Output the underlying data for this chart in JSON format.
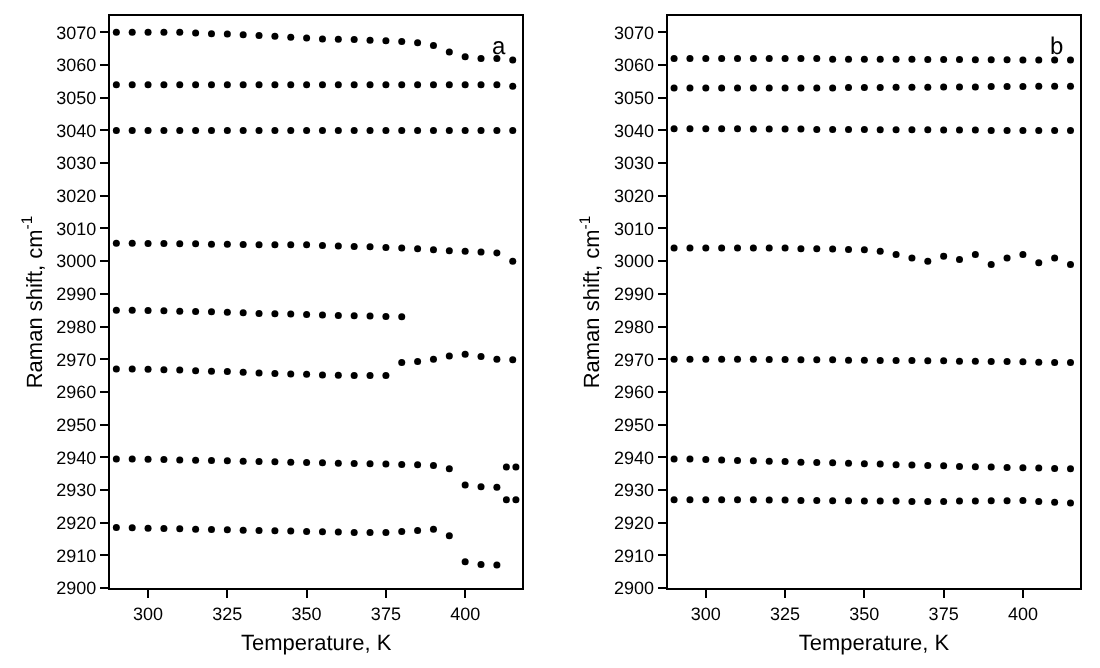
{
  "chart_data": [
    {
      "type": "scatter",
      "xlabel": "Temperature, K",
      "ylabel": "Raman shift, cm$^{-1}$",
      "annotations": [
        "a"
      ],
      "marker": "circle",
      "xlim": [
        288,
        418
      ],
      "xticks": [
        300,
        325,
        350,
        375,
        400
      ],
      "ylim": [
        2900,
        3075
      ],
      "yticks": [
        2900,
        2910,
        2920,
        2930,
        2940,
        2950,
        2960,
        2970,
        2980,
        2990,
        3000,
        3010,
        3020,
        3030,
        3040,
        3050,
        3060,
        3070
      ],
      "x": [
        290,
        295,
        300,
        305,
        310,
        315,
        320,
        325,
        330,
        335,
        340,
        345,
        350,
        355,
        360,
        365,
        370,
        375,
        380,
        385,
        390,
        395,
        400,
        405,
        410,
        415
      ],
      "series": [
        {
          "color": "#000000",
          "values": [
            3070,
            3070,
            3070,
            3070,
            3070,
            3069.8,
            3069.6,
            3069.5,
            3069.3,
            3069,
            3068.8,
            3068.5,
            3068.3,
            3068,
            3067.9,
            3067.8,
            3067.6,
            3067.4,
            3067.2,
            3066.8,
            3066,
            3064,
            3062.5,
            3062,
            3062,
            3061.5
          ]
        },
        {
          "color": "#000000",
          "values": [
            3054,
            3054,
            3054,
            3054,
            3054,
            3054,
            3054,
            3054,
            3054,
            3054,
            3054,
            3054,
            3054,
            3054,
            3054,
            3054,
            3054,
            3054,
            3054,
            3054,
            3054,
            3054,
            3054,
            3054,
            3054,
            3053.5
          ]
        },
        {
          "color": "#000000",
          "values": [
            3040,
            3040,
            3040,
            3040,
            3040,
            3040,
            3040,
            3040,
            3040,
            3040,
            3040,
            3040,
            3040,
            3040,
            3040,
            3040,
            3040,
            3040,
            3040,
            3040,
            3040,
            3040,
            3040,
            3040,
            3040,
            3040
          ]
        },
        {
          "color": "#000000",
          "values": [
            3005.5,
            3005.5,
            3005.4,
            3005.4,
            3005.3,
            3005.3,
            3005.2,
            3005.2,
            3005.1,
            3005,
            3005,
            3005,
            3005,
            3004.8,
            3004.6,
            3004.5,
            3004.4,
            3004.2,
            3004,
            3003.8,
            3003.5,
            3003.2,
            3003,
            3002.8,
            3002.5,
            3000
          ]
        },
        {
          "color": "#000000",
          "values": [
            2985,
            2985,
            2984.9,
            2984.8,
            2984.7,
            2984.6,
            2984.5,
            2984.4,
            2984.2,
            2984,
            2983.9,
            2983.8,
            2983.7,
            2983.5,
            2983.4,
            2983.3,
            2983.2,
            2983.1,
            2983,
            null,
            null,
            null,
            null,
            null,
            null,
            null
          ]
        },
        {
          "color": "#000000",
          "values": [
            2967,
            2967,
            2966.9,
            2966.8,
            2966.7,
            2966.5,
            2966.3,
            2966.2,
            2966,
            2965.8,
            2965.6,
            2965.5,
            2965.4,
            2965.2,
            2965.1,
            2965,
            2965,
            2965,
            2969,
            2969.3,
            2970,
            2971,
            2971.5,
            2970.8,
            2970,
            2969.8
          ]
        },
        {
          "color": "#000000",
          "x": [
            290,
            295,
            300,
            305,
            310,
            315,
            320,
            325,
            330,
            335,
            340,
            345,
            350,
            355,
            360,
            365,
            370,
            375,
            380,
            385,
            390,
            395,
            400,
            405,
            410,
            413,
            416,
            413,
            416
          ],
          "values": [
            2939.5,
            2939.5,
            2939.4,
            2939.3,
            2939.2,
            2939.1,
            2939,
            2938.9,
            2938.8,
            2938.7,
            2938.6,
            2938.5,
            2938.4,
            2938.3,
            2938.2,
            2938.1,
            2938,
            2937.9,
            2937.8,
            2937.7,
            2937.5,
            2936.5,
            2931.5,
            2931,
            2930.8,
            2937,
            2937,
            2927,
            2927
          ]
        },
        {
          "color": "#000000",
          "values": [
            2918.5,
            2918.4,
            2918.3,
            2918.2,
            2918.1,
            2918,
            2917.9,
            2917.8,
            2917.7,
            2917.6,
            2917.5,
            2917.4,
            2917.3,
            2917.2,
            2917.1,
            2917,
            2917,
            2917,
            2917.3,
            2917.6,
            2918,
            2916,
            2908,
            2907.2,
            2907,
            null
          ]
        }
      ]
    },
    {
      "type": "scatter",
      "xlabel": "Temperature, K",
      "ylabel": "Raman shift, cm$^{-1}$",
      "annotations": [
        "b"
      ],
      "marker": "circle",
      "xlim": [
        288,
        418
      ],
      "xticks": [
        300,
        325,
        350,
        375,
        400
      ],
      "ylim": [
        2900,
        3075
      ],
      "yticks": [
        2900,
        2910,
        2920,
        2930,
        2940,
        2950,
        2960,
        2970,
        2980,
        2990,
        3000,
        3010,
        3020,
        3030,
        3040,
        3050,
        3060,
        3070
      ],
      "x": [
        290,
        295,
        300,
        305,
        310,
        315,
        320,
        325,
        330,
        335,
        340,
        345,
        350,
        355,
        360,
        365,
        370,
        375,
        380,
        385,
        390,
        395,
        400,
        405,
        410,
        415
      ],
      "series": [
        {
          "color": "#000000",
          "values": [
            3062,
            3062,
            3062,
            3062,
            3062,
            3062,
            3062,
            3062,
            3062,
            3062,
            3061.8,
            3061.8,
            3061.8,
            3061.8,
            3061.8,
            3061.8,
            3061.7,
            3061.7,
            3061.7,
            3061.6,
            3061.6,
            3061.6,
            3061.5,
            3061.5,
            3061.5,
            3061.5
          ]
        },
        {
          "color": "#000000",
          "values": [
            3053,
            3053,
            3053,
            3053,
            3053,
            3053,
            3053,
            3053,
            3053,
            3053,
            3053,
            3053.1,
            3053.1,
            3053.1,
            3053.2,
            3053.2,
            3053.2,
            3053.3,
            3053.3,
            3053.3,
            3053.4,
            3053.4,
            3053.4,
            3053.5,
            3053.5,
            3053.5
          ]
        },
        {
          "color": "#000000",
          "values": [
            3040.5,
            3040.5,
            3040.5,
            3040.5,
            3040.5,
            3040.4,
            3040.4,
            3040.4,
            3040.4,
            3040.3,
            3040.3,
            3040.3,
            3040.3,
            3040.2,
            3040.2,
            3040.2,
            3040.2,
            3040.1,
            3040.1,
            3040.1,
            3040,
            3040,
            3040,
            3040,
            3040,
            3040
          ]
        },
        {
          "color": "#000000",
          "values": [
            3004,
            3004,
            3004,
            3004,
            3004,
            3004,
            3004,
            3004,
            3003.8,
            3003.8,
            3003.7,
            3003.6,
            3003.5,
            3003,
            3002,
            3001,
            3000,
            3001.5,
            3000.5,
            3002,
            2999,
            3001,
            3002,
            2999.5,
            3001,
            2999
          ]
        },
        {
          "color": "#000000",
          "values": [
            2970,
            2970,
            2970,
            2970,
            2970,
            2970,
            2969.9,
            2969.9,
            2969.8,
            2969.8,
            2969.8,
            2969.7,
            2969.7,
            2969.6,
            2969.6,
            2969.6,
            2969.5,
            2969.5,
            2969.4,
            2969.4,
            2969.3,
            2969.3,
            2969.2,
            2969.1,
            2969,
            2969
          ]
        },
        {
          "color": "#000000",
          "values": [
            2939.5,
            2939.5,
            2939.3,
            2939.2,
            2939,
            2938.9,
            2938.8,
            2938.7,
            2938.5,
            2938.4,
            2938.3,
            2938.2,
            2938,
            2937.9,
            2937.7,
            2937.6,
            2937.5,
            2937.4,
            2937.2,
            2937.1,
            2937,
            2936.9,
            2936.8,
            2936.7,
            2936.6,
            2936.5
          ]
        },
        {
          "color": "#000000",
          "values": [
            2927,
            2927,
            2927,
            2927,
            2927,
            2927,
            2926.9,
            2926.9,
            2926.8,
            2926.8,
            2926.7,
            2926.7,
            2926.6,
            2926.6,
            2926.6,
            2926.5,
            2926.5,
            2926.5,
            2926.6,
            2926.6,
            2926.7,
            2926.7,
            2926.8,
            2926.5,
            2926.2,
            2926
          ]
        }
      ]
    }
  ]
}
